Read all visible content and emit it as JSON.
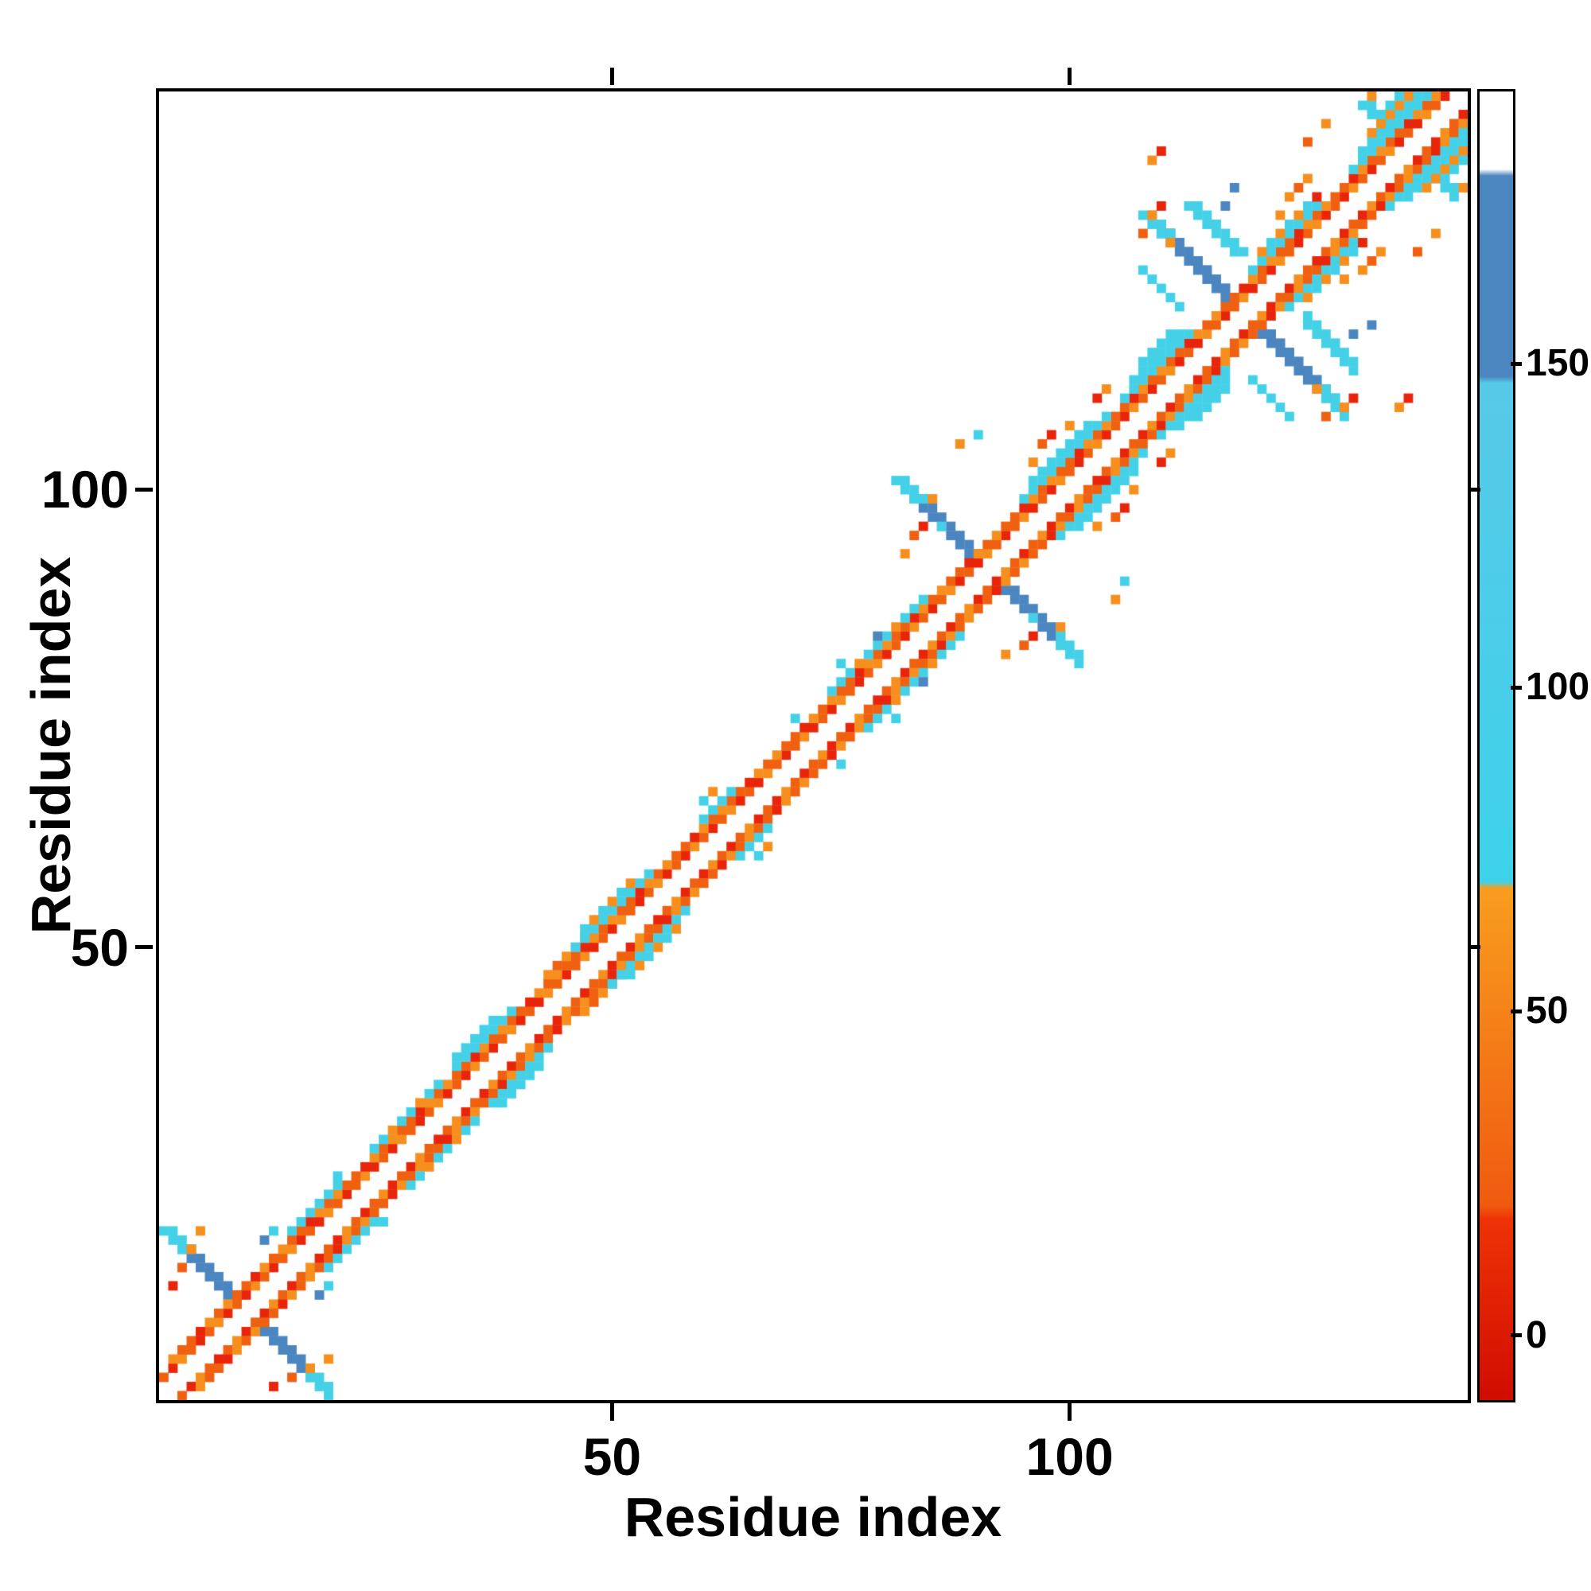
{
  "figure": {
    "background": "#ffffff"
  },
  "chart_data": {
    "type": "heatmap",
    "title": "",
    "xlabel": "Residue index",
    "ylabel": "Residue index",
    "n_residues": 143,
    "axis_range": [
      1,
      143
    ],
    "x_ticks": [
      50,
      100
    ],
    "y_ticks": [
      50,
      100
    ],
    "grid": false,
    "legend_position": "right-colorbar",
    "description": "Symmetric protein residue-residue contact map; near-diagonal bands with three antiparallel hairpin (X-shaped) motifs centered near residues 10, 91 and 119; cells colored by value via the right colorbar",
    "value_colors": [
      {
        "max": 18,
        "color": "#e8250b"
      },
      {
        "max": 40,
        "color": "#f06011"
      },
      {
        "max": 70,
        "color": "#f78f1e"
      },
      {
        "max": 148,
        "color": "#44d1e8"
      },
      {
        "max": 180,
        "color": "#4c86c0"
      },
      {
        "max": 9999,
        "color": "#ffffff"
      }
    ],
    "colorbar": {
      "domain": [
        -10,
        192
      ],
      "ticks": [
        0,
        50,
        100,
        150
      ],
      "gradient_stops": [
        {
          "v": -10,
          "color": "#cf0d00"
        },
        {
          "v": 18,
          "color": "#ee3306"
        },
        {
          "v": 20,
          "color": "#f05a10"
        },
        {
          "v": 69,
          "color": "#f89d1e"
        },
        {
          "v": 70,
          "color": "#3ed2ea"
        },
        {
          "v": 147,
          "color": "#57c9e8"
        },
        {
          "v": 148,
          "color": "#4c86c0"
        },
        {
          "v": 179,
          "color": "#4c86c0"
        },
        {
          "v": 180,
          "color": "#ffffff"
        },
        {
          "v": 192,
          "color": "#ffffff"
        }
      ]
    },
    "diag_segments": [
      {
        "i0": 1,
        "i1": 141,
        "d": 2,
        "vs": [
          30,
          10,
          55,
          30,
          10,
          30,
          55,
          10
        ]
      },
      {
        "i0": 2,
        "i1": 140,
        "d": 3,
        "vs": [
          55,
          30,
          30,
          10,
          55,
          30
        ]
      },
      {
        "i0": 15,
        "i1": 20,
        "d": 4,
        "vs": [
          100
        ]
      },
      {
        "i0": 24,
        "i1": 31,
        "d": 4,
        "vs": [
          100,
          100,
          55
        ]
      },
      {
        "i0": 33,
        "i1": 39,
        "d": 4,
        "vs": [
          100
        ]
      },
      {
        "i0": 43,
        "i1": 49,
        "d": 4,
        "vs": [
          55,
          30
        ]
      },
      {
        "i0": 46,
        "i1": 54,
        "d": 4,
        "vs": [
          100
        ]
      },
      {
        "i0": 60,
        "i1": 63,
        "d": 4,
        "vs": [
          100
        ]
      },
      {
        "i0": 74,
        "i1": 84,
        "d": 4,
        "vs": [
          100,
          100,
          100,
          55
        ]
      },
      {
        "i0": 95,
        "i1": 104,
        "d": 4,
        "vs": [
          100
        ]
      },
      {
        "i0": 106,
        "i1": 113,
        "d": 4,
        "vs": [
          100
        ]
      },
      {
        "i0": 120,
        "i1": 127,
        "d": 4,
        "vs": [
          100
        ]
      },
      {
        "i0": 131,
        "i1": 139,
        "d": 4,
        "vs": [
          100
        ]
      },
      {
        "i0": 33,
        "i1": 37,
        "d": 5,
        "vs": [
          100
        ]
      },
      {
        "i0": 47,
        "i1": 52,
        "d": 5,
        "vs": [
          100,
          55
        ]
      },
      {
        "i0": 96,
        "i1": 102,
        "d": 5,
        "vs": [
          100
        ]
      },
      {
        "i0": 107,
        "i1": 112,
        "d": 5,
        "vs": [
          100
        ]
      },
      {
        "i0": 121,
        "i1": 126,
        "d": 5,
        "vs": [
          55,
          100
        ]
      },
      {
        "i0": 132,
        "i1": 138,
        "d": 5,
        "vs": [
          100
        ]
      },
      {
        "i0": 108,
        "i1": 111,
        "d": 6,
        "vs": [
          100
        ]
      },
      {
        "i0": 133,
        "i1": 137,
        "d": 6,
        "vs": [
          55
        ]
      },
      {
        "i0": 134,
        "i1": 136,
        "d": 7,
        "vs": [
          100
        ]
      }
    ],
    "hairpins": [
      {
        "c": 10,
        "k0": 2,
        "k1": 7,
        "v": 160,
        "w": 2
      },
      {
        "c": 10,
        "k0": 7,
        "k1": 9,
        "v": 100,
        "w": 2
      },
      {
        "c": 10,
        "k0": 1,
        "k1": 1,
        "v": 100,
        "w": 1
      },
      {
        "c": 91,
        "k0": 2,
        "k1": 8,
        "v": 160,
        "w": 2
      },
      {
        "c": 91,
        "k0": 8,
        "k1": 10,
        "v": 100,
        "w": 2
      },
      {
        "c": 119,
        "k0": 2,
        "k1": 9,
        "v": 160,
        "w": 3
      },
      {
        "c": 119,
        "k0": 9,
        "k1": 11,
        "v": 100,
        "w": 2
      },
      {
        "c": 122,
        "k0": 4,
        "k1": 9,
        "v": 100,
        "w": 2
      },
      {
        "c": 116,
        "k0": 4,
        "k1": 8,
        "v": 100,
        "w": 1
      },
      {
        "c": 137,
        "k0": 2,
        "k1": 5,
        "v": 100,
        "w": 2
      },
      {
        "c": 137,
        "k0": 1,
        "k1": 1,
        "v": 160,
        "w": 1
      }
    ],
    "scatter": [
      [
        2,
        13,
        10
      ],
      [
        3,
        15,
        30
      ],
      [
        4,
        17,
        55
      ],
      [
        5,
        19,
        55
      ],
      [
        12,
        18,
        160
      ],
      [
        13,
        19,
        100
      ],
      [
        20,
        25,
        100
      ],
      [
        60,
        66,
        100
      ],
      [
        61,
        67,
        55
      ],
      [
        70,
        75,
        100
      ],
      [
        75,
        81,
        100
      ],
      [
        79,
        84,
        160
      ],
      [
        82,
        93,
        55
      ],
      [
        83,
        95,
        30
      ],
      [
        84,
        96,
        10
      ],
      [
        85,
        99,
        55
      ],
      [
        86,
        96,
        100
      ],
      [
        88,
        105,
        55
      ],
      [
        90,
        106,
        100
      ],
      [
        96,
        103,
        55
      ],
      [
        97,
        105,
        30
      ],
      [
        98,
        106,
        10
      ],
      [
        100,
        107,
        55
      ],
      [
        103,
        110,
        10
      ],
      [
        104,
        111,
        55
      ],
      [
        108,
        128,
        30
      ],
      [
        109,
        130,
        55
      ],
      [
        110,
        131,
        10
      ],
      [
        111,
        127,
        55
      ],
      [
        116,
        129,
        100
      ],
      [
        117,
        131,
        160
      ],
      [
        118,
        133,
        160
      ],
      [
        109,
        136,
        55
      ],
      [
        110,
        137,
        10
      ],
      [
        123,
        130,
        55
      ],
      [
        124,
        132,
        55
      ],
      [
        125,
        133,
        30
      ],
      [
        126,
        134,
        55
      ],
      [
        127,
        132,
        10
      ],
      [
        126,
        138,
        30
      ],
      [
        128,
        140,
        55
      ],
      [
        133,
        143,
        55
      ]
    ]
  }
}
